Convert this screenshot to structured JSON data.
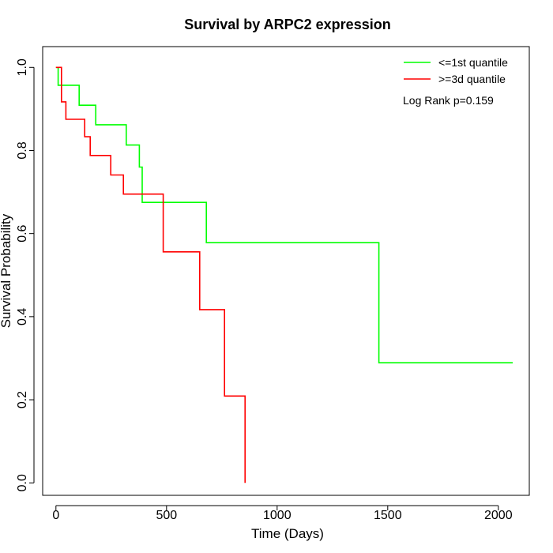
{
  "chart_data": {
    "type": "line",
    "title": "Survival by ARPC2 expression",
    "xlabel": "Time (Days)",
    "ylabel": "Survival Probability",
    "xlim": [
      -60,
      2140
    ],
    "ylim": [
      -0.03,
      1.05
    ],
    "x_ticks": [
      0,
      500,
      1000,
      1500,
      2000
    ],
    "x_tick_labels": [
      "0",
      "500",
      "1000",
      "1500",
      "2000"
    ],
    "y_ticks": [
      0.0,
      0.2,
      0.4,
      0.6,
      0.8,
      1.0
    ],
    "y_tick_labels": [
      "0.0",
      "0.2",
      "0.4",
      "0.6",
      "0.8",
      "1.0"
    ],
    "grid": false,
    "legend_position": "top-right",
    "annotation": "Log Rank p=0.159",
    "series": [
      {
        "name": "<=1st quantile",
        "color": "#00ff00",
        "step": true,
        "points": [
          [
            0,
            1.0
          ],
          [
            10,
            0.957
          ],
          [
            105,
            0.909
          ],
          [
            180,
            0.862
          ],
          [
            318,
            0.813
          ],
          [
            377,
            0.76
          ],
          [
            390,
            0.675
          ],
          [
            680,
            0.578
          ],
          [
            1460,
            0.289
          ],
          [
            2065,
            0.289
          ]
        ]
      },
      {
        "name": ">=3d quantile",
        "color": "#ff0000",
        "step": true,
        "points": [
          [
            0,
            1.0
          ],
          [
            25,
            0.917
          ],
          [
            45,
            0.875
          ],
          [
            130,
            0.833
          ],
          [
            155,
            0.788
          ],
          [
            248,
            0.741
          ],
          [
            305,
            0.695
          ],
          [
            485,
            0.556
          ],
          [
            650,
            0.417
          ],
          [
            762,
            0.209
          ],
          [
            855,
            0.0
          ]
        ]
      }
    ]
  }
}
